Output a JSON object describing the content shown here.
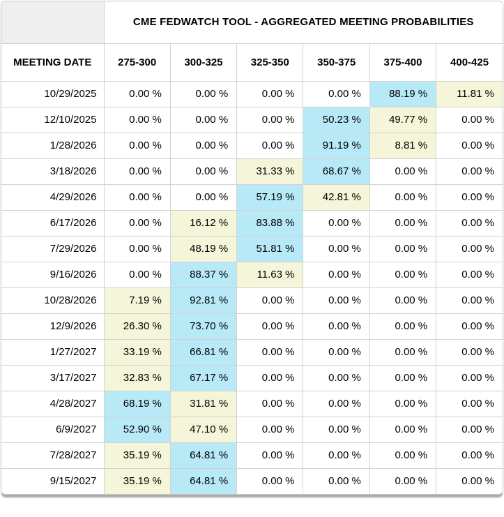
{
  "table": {
    "title": "CME FEDWATCH TOOL - AGGREGATED MEETING PROBABILITIES",
    "date_header": "MEETING DATE",
    "rate_headers": [
      "275-300",
      "300-325",
      "325-350",
      "350-375",
      "375-400",
      "400-425"
    ],
    "rows": [
      {
        "date": "10/29/2025",
        "values": [
          "0.00 %",
          "0.00 %",
          "0.00 %",
          "0.00 %",
          "88.19 %",
          "11.81 %"
        ],
        "highlights": [
          "",
          "",
          "",
          "",
          "max",
          "second"
        ]
      },
      {
        "date": "12/10/2025",
        "values": [
          "0.00 %",
          "0.00 %",
          "0.00 %",
          "50.23 %",
          "49.77 %",
          "0.00 %"
        ],
        "highlights": [
          "",
          "",
          "",
          "max",
          "second",
          ""
        ]
      },
      {
        "date": "1/28/2026",
        "values": [
          "0.00 %",
          "0.00 %",
          "0.00 %",
          "91.19 %",
          "8.81 %",
          "0.00 %"
        ],
        "highlights": [
          "",
          "",
          "",
          "max",
          "second",
          ""
        ]
      },
      {
        "date": "3/18/2026",
        "values": [
          "0.00 %",
          "0.00 %",
          "31.33 %",
          "68.67 %",
          "0.00 %",
          "0.00 %"
        ],
        "highlights": [
          "",
          "",
          "second",
          "max",
          "",
          ""
        ]
      },
      {
        "date": "4/29/2026",
        "values": [
          "0.00 %",
          "0.00 %",
          "57.19 %",
          "42.81 %",
          "0.00 %",
          "0.00 %"
        ],
        "highlights": [
          "",
          "",
          "max",
          "second",
          "",
          ""
        ]
      },
      {
        "date": "6/17/2026",
        "values": [
          "0.00 %",
          "16.12 %",
          "83.88 %",
          "0.00 %",
          "0.00 %",
          "0.00 %"
        ],
        "highlights": [
          "",
          "second",
          "max",
          "",
          "",
          ""
        ]
      },
      {
        "date": "7/29/2026",
        "values": [
          "0.00 %",
          "48.19 %",
          "51.81 %",
          "0.00 %",
          "0.00 %",
          "0.00 %"
        ],
        "highlights": [
          "",
          "second",
          "max",
          "",
          "",
          ""
        ]
      },
      {
        "date": "9/16/2026",
        "values": [
          "0.00 %",
          "88.37 %",
          "11.63 %",
          "0.00 %",
          "0.00 %",
          "0.00 %"
        ],
        "highlights": [
          "",
          "max",
          "second",
          "",
          "",
          ""
        ]
      },
      {
        "date": "10/28/2026",
        "values": [
          "7.19 %",
          "92.81 %",
          "0.00 %",
          "0.00 %",
          "0.00 %",
          "0.00 %"
        ],
        "highlights": [
          "second",
          "max",
          "",
          "",
          "",
          ""
        ]
      },
      {
        "date": "12/9/2026",
        "values": [
          "26.30 %",
          "73.70 %",
          "0.00 %",
          "0.00 %",
          "0.00 %",
          "0.00 %"
        ],
        "highlights": [
          "second",
          "max",
          "",
          "",
          "",
          ""
        ]
      },
      {
        "date": "1/27/2027",
        "values": [
          "33.19 %",
          "66.81 %",
          "0.00 %",
          "0.00 %",
          "0.00 %",
          "0.00 %"
        ],
        "highlights": [
          "second",
          "max",
          "",
          "",
          "",
          ""
        ]
      },
      {
        "date": "3/17/2027",
        "values": [
          "32.83 %",
          "67.17 %",
          "0.00 %",
          "0.00 %",
          "0.00 %",
          "0.00 %"
        ],
        "highlights": [
          "second",
          "max",
          "",
          "",
          "",
          ""
        ]
      },
      {
        "date": "4/28/2027",
        "values": [
          "68.19 %",
          "31.81 %",
          "0.00 %",
          "0.00 %",
          "0.00 %",
          "0.00 %"
        ],
        "highlights": [
          "max",
          "second",
          "",
          "",
          "",
          ""
        ]
      },
      {
        "date": "6/9/2027",
        "values": [
          "52.90 %",
          "47.10 %",
          "0.00 %",
          "0.00 %",
          "0.00 %",
          "0.00 %"
        ],
        "highlights": [
          "max",
          "second",
          "",
          "",
          "",
          ""
        ]
      },
      {
        "date": "7/28/2027",
        "values": [
          "35.19 %",
          "64.81 %",
          "0.00 %",
          "0.00 %",
          "0.00 %",
          "0.00 %"
        ],
        "highlights": [
          "second",
          "max",
          "",
          "",
          "",
          ""
        ]
      },
      {
        "date": "9/15/2027",
        "values": [
          "35.19 %",
          "64.81 %",
          "0.00 %",
          "0.00 %",
          "0.00 %",
          "0.00 %"
        ],
        "highlights": [
          "second",
          "max",
          "",
          "",
          "",
          ""
        ]
      }
    ]
  },
  "colors": {
    "max_highlight": "#b8e9f7",
    "second_highlight": "#f5f5d9",
    "corner_bg": "#efefef",
    "border": "#d2d2d2",
    "shadow": "#a8a8a8"
  }
}
